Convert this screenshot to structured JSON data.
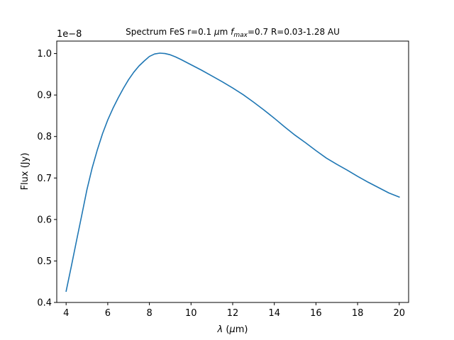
{
  "chart_data": {
    "type": "line",
    "title_parts": {
      "prefix": "Spectrum FeS r=0.1 ",
      "mu": "μ",
      "after_mu": "m ",
      "f": "f",
      "sub": "max",
      "suffix": "=0.7 R=0.03-1.28 AU"
    },
    "xlabel_parts": {
      "lambda": "λ",
      "rest": " (",
      "mu": "μ",
      "unit": "m)"
    },
    "ylabel": "Flux (Jy)",
    "offset_text": "1e−8",
    "xlim": [
      3.55,
      20.45
    ],
    "ylim": [
      0.4,
      1.03
    ],
    "xticks": [
      4,
      6,
      8,
      10,
      12,
      14,
      16,
      18,
      20
    ],
    "xtick_labels": [
      "4",
      "6",
      "8",
      "10",
      "12",
      "14",
      "16",
      "18",
      "20"
    ],
    "yticks": [
      0.4,
      0.5,
      0.6,
      0.7,
      0.8,
      0.9,
      1.0
    ],
    "ytick_labels": [
      "0.4",
      "0.5",
      "0.6",
      "0.7",
      "0.8",
      "0.9",
      "1.0"
    ],
    "grid": false,
    "legend": "none",
    "line_color": "#1f77b4",
    "series": [
      {
        "x": [
          4.0,
          4.25,
          4.5,
          4.75,
          5.0,
          5.25,
          5.5,
          5.75,
          6.0,
          6.25,
          6.5,
          6.75,
          7.0,
          7.25,
          7.5,
          7.75,
          8.0,
          8.25,
          8.5,
          8.75,
          9.0,
          9.25,
          9.5,
          10.0,
          10.5,
          11.0,
          11.5,
          12.0,
          12.5,
          13.0,
          13.5,
          14.0,
          14.5,
          15.0,
          15.5,
          16.0,
          16.5,
          17.0,
          17.5,
          18.0,
          18.5,
          19.0,
          19.5,
          20.0
        ],
        "y": [
          0.427,
          0.487,
          0.549,
          0.61,
          0.672,
          0.724,
          0.768,
          0.807,
          0.84,
          0.868,
          0.893,
          0.916,
          0.937,
          0.955,
          0.97,
          0.982,
          0.993,
          0.999,
          1.001,
          1.0,
          0.997,
          0.992,
          0.986,
          0.973,
          0.96,
          0.946,
          0.932,
          0.917,
          0.901,
          0.883,
          0.864,
          0.844,
          0.823,
          0.803,
          0.785,
          0.766,
          0.748,
          0.733,
          0.719,
          0.704,
          0.69,
          0.677,
          0.664,
          0.654
        ]
      }
    ]
  }
}
